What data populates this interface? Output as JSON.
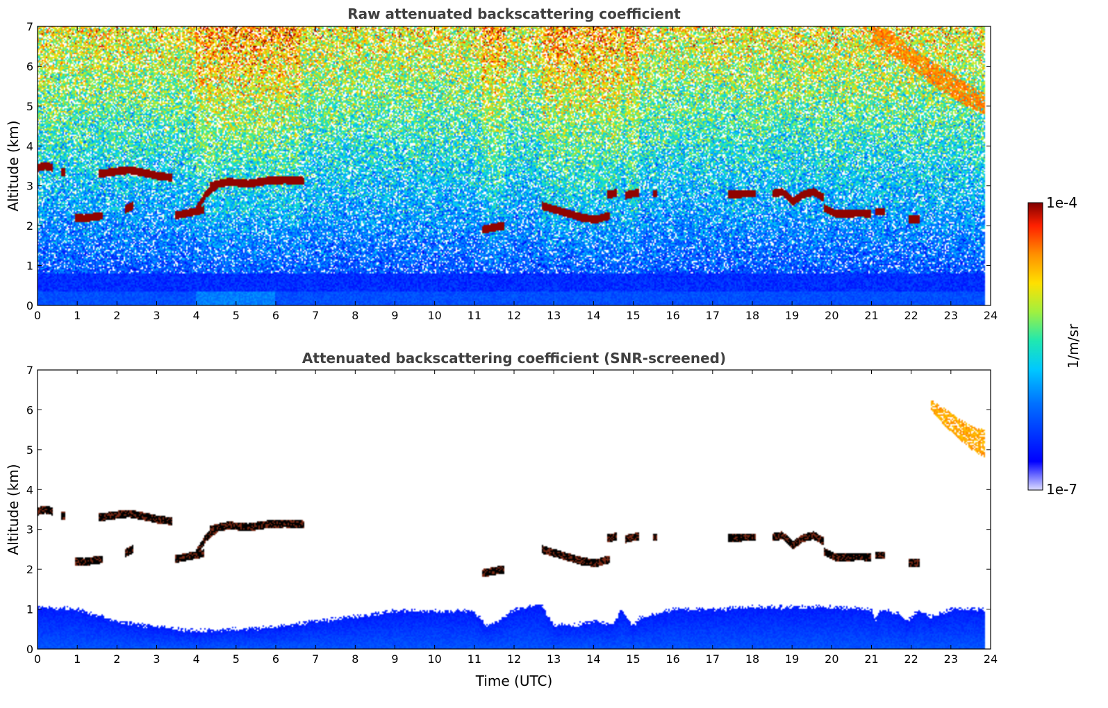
{
  "chart_data": [
    {
      "type": "heatmap",
      "title": "Raw attenuated backscattering coefficient",
      "xlabel": "",
      "ylabel": "Altitude (km)",
      "xlim": [
        0,
        24
      ],
      "ylim": [
        0,
        7
      ],
      "x_ticks": [
        "0",
        "1",
        "2",
        "3",
        "4",
        "5",
        "6",
        "7",
        "8",
        "9",
        "10",
        "11",
        "12",
        "13",
        "14",
        "15",
        "16",
        "17",
        "18",
        "19",
        "20",
        "21",
        "22",
        "23",
        "24"
      ],
      "y_ticks": [
        "0",
        "1",
        "2",
        "3",
        "4",
        "5",
        "6",
        "7"
      ],
      "colormap": "jet",
      "scale": "log",
      "data_end_time": 23.85,
      "cloud_layers": [
        {
          "t0": 0.0,
          "t1": 0.4,
          "alt": [
            3.45,
            3.5,
            3.45
          ]
        },
        {
          "t0": 0.6,
          "t1": 0.7,
          "alt": [
            3.35,
            3.35
          ]
        },
        {
          "t0": 0.95,
          "t1": 1.65,
          "alt": [
            2.2,
            2.18,
            2.22,
            2.25
          ]
        },
        {
          "t0": 1.55,
          "t1": 3.4,
          "alt": [
            3.3,
            3.35,
            3.4,
            3.33,
            3.25,
            3.2
          ]
        },
        {
          "t0": 2.2,
          "t1": 2.4,
          "alt": [
            2.4,
            2.5
          ]
        },
        {
          "t0": 3.45,
          "t1": 4.2,
          "alt": [
            2.25,
            2.3,
            2.35,
            2.4
          ]
        },
        {
          "t0": 4.0,
          "t1": 4.5,
          "alt": [
            2.4,
            2.8,
            3.0
          ]
        },
        {
          "t0": 4.35,
          "t1": 6.7,
          "alt": [
            3.0,
            3.1,
            3.05,
            3.12,
            3.15,
            3.12
          ]
        },
        {
          "t0": 11.2,
          "t1": 11.75,
          "alt": [
            1.9,
            1.95,
            2.0
          ]
        },
        {
          "t0": 12.7,
          "t1": 14.4,
          "alt": [
            2.5,
            2.4,
            2.3,
            2.2,
            2.15,
            2.25
          ]
        },
        {
          "t0": 14.35,
          "t1": 14.6,
          "alt": [
            2.78,
            2.82
          ]
        },
        {
          "t0": 14.8,
          "t1": 15.15,
          "alt": [
            2.75,
            2.8,
            2.82
          ]
        },
        {
          "t0": 15.5,
          "t1": 15.6,
          "alt": [
            2.8,
            2.8
          ]
        },
        {
          "t0": 17.4,
          "t1": 18.1,
          "alt": [
            2.78,
            2.8,
            2.8
          ]
        },
        {
          "t0": 18.5,
          "t1": 19.8,
          "alt": [
            2.8,
            2.85,
            2.6,
            2.78,
            2.85,
            2.7
          ]
        },
        {
          "t0": 19.8,
          "t1": 21.0,
          "alt": [
            2.45,
            2.3,
            2.3,
            2.32,
            2.3
          ]
        },
        {
          "t0": 21.1,
          "t1": 21.35,
          "alt": [
            2.35,
            2.35
          ]
        },
        {
          "t0": 21.95,
          "t1": 22.2,
          "alt": [
            2.15,
            2.15
          ]
        }
      ],
      "high_cloud": {
        "t0": 21.0,
        "t1": 23.85,
        "alt_top": [
          7.0,
          6.9,
          6.5,
          6.2,
          5.9,
          5.6,
          5.3
        ],
        "alt_bottom": [
          6.6,
          6.3,
          6.0,
          5.6,
          5.3,
          5.0,
          4.8
        ]
      },
      "noise_bands": [
        [
          4.0,
          6.6
        ],
        [
          11.2,
          11.8
        ],
        [
          12.7,
          14.7
        ],
        [
          14.8,
          15.15
        ]
      ]
    },
    {
      "type": "heatmap",
      "title": "Attenuated backscattering coefficient (SNR-screened)",
      "xlabel": "Time (UTC)",
      "ylabel": "Altitude (km)",
      "xlim": [
        0,
        24
      ],
      "ylim": [
        0,
        7
      ],
      "x_ticks": [
        "0",
        "1",
        "2",
        "3",
        "4",
        "5",
        "6",
        "7",
        "8",
        "9",
        "10",
        "11",
        "12",
        "13",
        "14",
        "15",
        "16",
        "17",
        "18",
        "19",
        "20",
        "21",
        "22",
        "23",
        "24"
      ],
      "y_ticks": [
        "0",
        "1",
        "2",
        "3",
        "4",
        "5",
        "6",
        "7"
      ],
      "colormap": "jet",
      "scale": "log",
      "boundary_layer_top": [
        [
          0,
          1.05
        ],
        [
          1,
          1.0
        ],
        [
          2,
          0.7
        ],
        [
          3,
          0.55
        ],
        [
          4,
          0.45
        ],
        [
          5,
          0.5
        ],
        [
          6,
          0.55
        ],
        [
          7,
          0.7
        ],
        [
          8,
          0.8
        ],
        [
          9,
          0.95
        ],
        [
          10,
          0.95
        ],
        [
          11,
          0.95
        ],
        [
          11.3,
          0.6
        ],
        [
          11.6,
          0.7
        ],
        [
          12,
          1.0
        ],
        [
          12.7,
          1.1
        ],
        [
          13,
          0.6
        ],
        [
          13.5,
          0.6
        ],
        [
          14,
          0.7
        ],
        [
          14.5,
          0.6
        ],
        [
          14.7,
          1.0
        ],
        [
          15,
          0.6
        ],
        [
          15.2,
          0.8
        ],
        [
          16,
          1.0
        ],
        [
          17,
          1.0
        ],
        [
          18,
          1.05
        ],
        [
          19,
          1.05
        ],
        [
          20,
          1.05
        ],
        [
          21,
          1.0
        ],
        [
          21.1,
          0.7
        ],
        [
          21.2,
          1.0
        ],
        [
          21.7,
          0.9
        ],
        [
          21.9,
          0.7
        ],
        [
          22.2,
          1.0
        ],
        [
          22.5,
          0.8
        ],
        [
          23,
          1.0
        ],
        [
          23.85,
          1.0
        ]
      ],
      "high_cloud": {
        "t0": 22.5,
        "t1": 23.85,
        "alt_top": [
          6.25,
          6.05,
          5.8,
          5.6,
          5.5
        ],
        "alt_bottom": [
          6.0,
          5.6,
          5.3,
          5.0,
          4.8
        ]
      }
    }
  ],
  "colorbar": {
    "label": "1/m/sr",
    "max_label": "1e-4",
    "min_label": "1e-7"
  }
}
